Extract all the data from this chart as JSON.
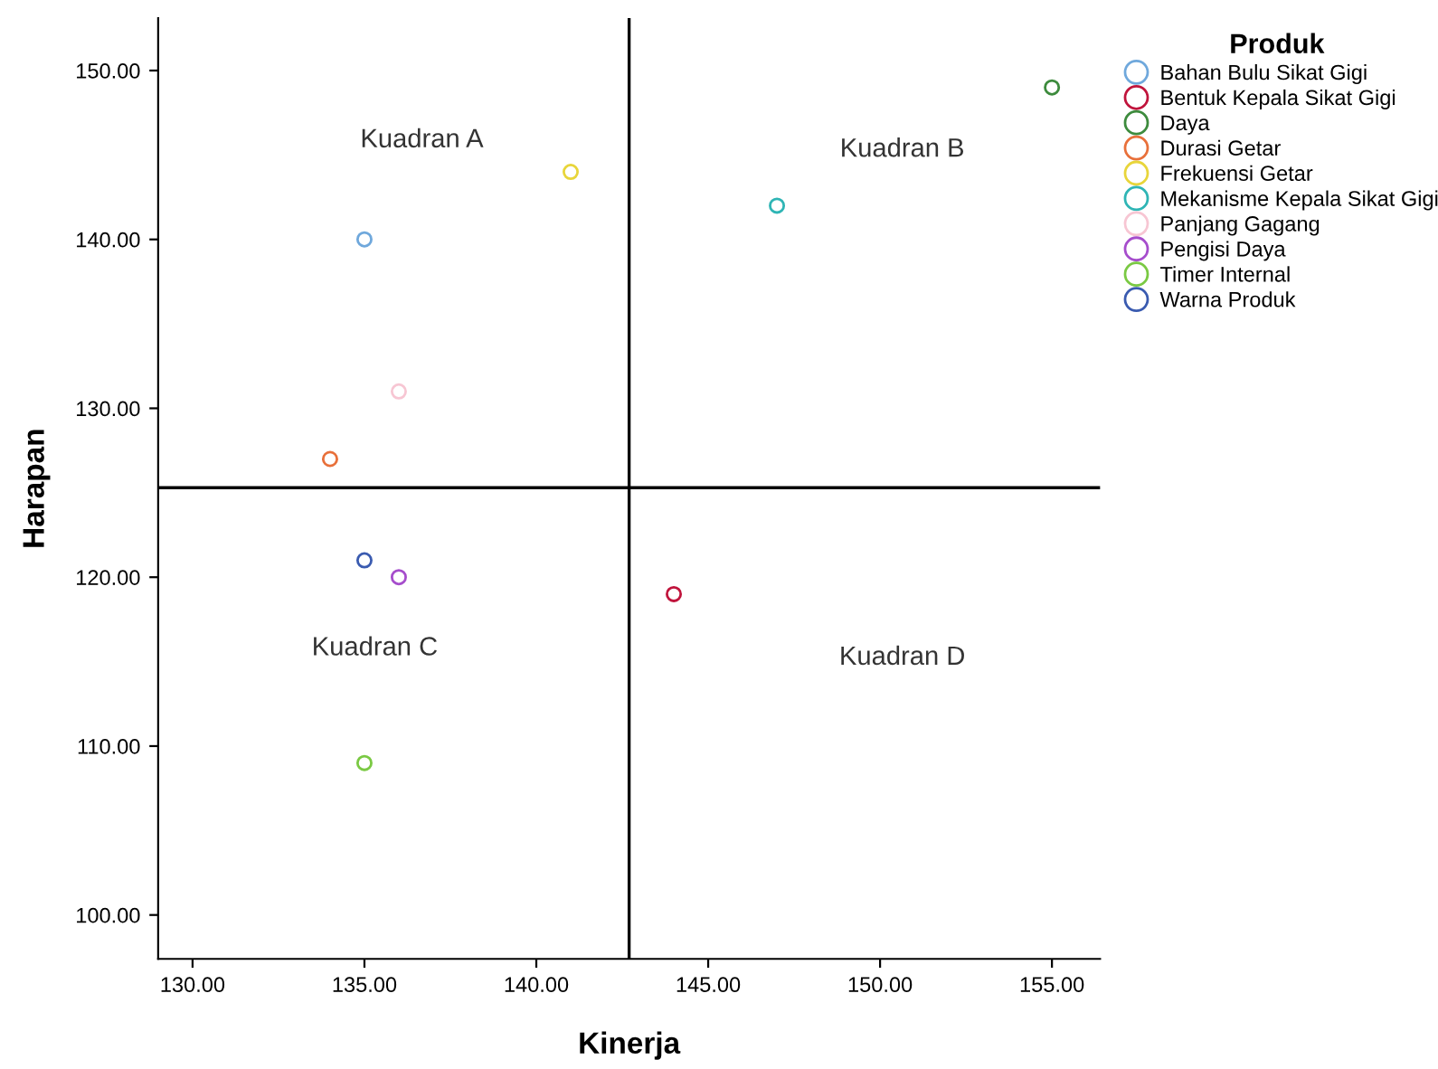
{
  "chart_data": {
    "type": "scatter",
    "xlabel": "Kinerja",
    "ylabel": "Harapan",
    "legend_title": "Produk",
    "xlim": [
      129.0,
      156.4
    ],
    "ylim": [
      97.4,
      153.1
    ],
    "xticks": [
      {
        "value": 130,
        "label": "130.00"
      },
      {
        "value": 135,
        "label": "135.00"
      },
      {
        "value": 140,
        "label": "140.00"
      },
      {
        "value": 145,
        "label": "145.00"
      },
      {
        "value": 150,
        "label": "150.00"
      },
      {
        "value": 155,
        "label": "155.00"
      }
    ],
    "yticks": [
      {
        "value": 100,
        "label": "100.00"
      },
      {
        "value": 110,
        "label": "110.00"
      },
      {
        "value": 120,
        "label": "120.00"
      },
      {
        "value": 130,
        "label": "130.00"
      },
      {
        "value": 140,
        "label": "140.00"
      },
      {
        "value": 150,
        "label": "150.00"
      }
    ],
    "grid": false,
    "legend": "right",
    "marker": "circle",
    "series": [
      {
        "name": "Bahan Bulu Sikat Gigi",
        "color": "#6fa8dc",
        "x": [
          135
        ],
        "values": [
          140
        ]
      },
      {
        "name": "Bentuk Kepala Sikat Gigi",
        "color": "#c0143c",
        "x": [
          144
        ],
        "values": [
          119
        ]
      },
      {
        "name": "Daya",
        "color": "#3d8b3d",
        "x": [
          155
        ],
        "values": [
          149
        ]
      },
      {
        "name": "Durasi Getar",
        "color": "#e8703a",
        "x": [
          134
        ],
        "values": [
          127
        ]
      },
      {
        "name": "Frekuensi Getar",
        "color": "#e8d53a",
        "x": [
          141
        ],
        "values": [
          144
        ]
      },
      {
        "name": "Mekanisme Kepala Sikat Gigi",
        "color": "#2fb5b5",
        "x": [
          147
        ],
        "values": [
          142
        ]
      },
      {
        "name": "Panjang Gagang",
        "color": "#f7c6d3",
        "x": [
          136
        ],
        "values": [
          131
        ]
      },
      {
        "name": "Pengisi Daya",
        "color": "#a64dcc",
        "x": [
          136
        ],
        "values": [
          120
        ]
      },
      {
        "name": "Timer Internal",
        "color": "#7ac943",
        "x": [
          135
        ],
        "values": [
          109
        ]
      },
      {
        "name": "Warna Produk",
        "color": "#3a5bb0",
        "x": [
          135
        ],
        "values": [
          121
        ]
      }
    ],
    "ref_lines": [
      {
        "axis": "x",
        "value": 142.7,
        "color": "#000000"
      },
      {
        "axis": "y",
        "value": 125.3,
        "color": "#000000"
      }
    ],
    "annotations": [
      "Kuadran A",
      "Kuadran B",
      "Kuadran C",
      "Kuadran D"
    ]
  }
}
